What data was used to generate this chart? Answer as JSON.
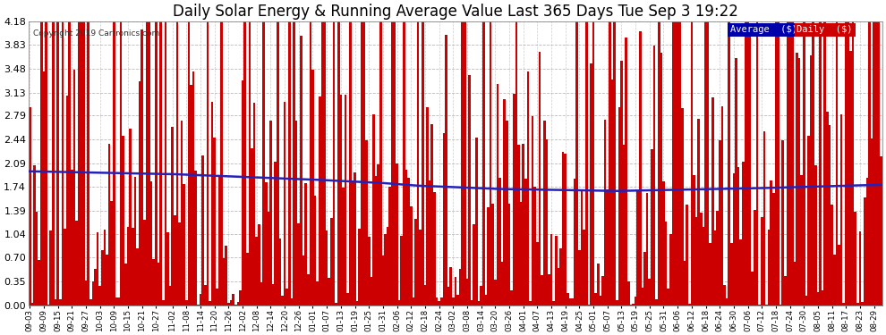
{
  "title": "Daily Solar Energy & Running Average Value Last 365 Days Tue Sep 3 19:22",
  "copyright": "Copyright 2019 Cartronics.com",
  "background_color": "#ffffff",
  "plot_bg_color": "#ffffff",
  "bar_color": "#cc0000",
  "line_color": "#2222bb",
  "ylim_min": 0.0,
  "ylim_max": 4.18,
  "ytick_values": [
    0.0,
    0.35,
    0.7,
    1.04,
    1.39,
    1.74,
    2.09,
    2.44,
    2.79,
    3.13,
    3.48,
    3.83,
    4.18
  ],
  "legend_avg_bg": "#0000aa",
  "legend_daily_bg": "#cc0000",
  "legend_text_color": "#ffffff",
  "title_fontsize": 12,
  "n_days": 365,
  "x_tick_labels": [
    "09-03",
    "09-09",
    "09-15",
    "09-21",
    "09-27",
    "10-03",
    "10-09",
    "10-15",
    "10-21",
    "10-27",
    "11-02",
    "11-08",
    "11-14",
    "11-20",
    "11-26",
    "12-02",
    "12-08",
    "12-14",
    "12-20",
    "12-26",
    "01-01",
    "01-07",
    "01-13",
    "01-19",
    "01-25",
    "01-31",
    "02-06",
    "02-12",
    "02-18",
    "02-24",
    "03-02",
    "03-08",
    "03-14",
    "03-20",
    "03-26",
    "04-01",
    "04-07",
    "04-13",
    "04-19",
    "04-25",
    "05-01",
    "05-07",
    "05-13",
    "05-19",
    "05-25",
    "05-31",
    "06-06",
    "06-12",
    "06-18",
    "06-24",
    "06-30",
    "07-06",
    "07-12",
    "07-18",
    "07-24",
    "07-30",
    "08-05",
    "08-11",
    "08-17",
    "08-23",
    "08-29"
  ],
  "x_tick_positions": [
    0,
    6,
    12,
    18,
    24,
    30,
    36,
    42,
    48,
    54,
    61,
    67,
    73,
    79,
    85,
    91,
    97,
    103,
    109,
    115,
    121,
    127,
    133,
    139,
    145,
    151,
    157,
    163,
    169,
    175,
    181,
    187,
    193,
    199,
    205,
    211,
    217,
    223,
    229,
    235,
    241,
    247,
    253,
    259,
    265,
    271,
    277,
    283,
    289,
    295,
    301,
    307,
    313,
    319,
    325,
    331,
    337,
    343,
    349,
    355,
    361
  ],
  "avg_control_points": [
    [
      0,
      1.97
    ],
    [
      30,
      1.95
    ],
    [
      60,
      1.93
    ],
    [
      90,
      1.89
    ],
    [
      120,
      1.85
    ],
    [
      150,
      1.8
    ],
    [
      165,
      1.76
    ],
    [
      180,
      1.74
    ],
    [
      200,
      1.71
    ],
    [
      220,
      1.7
    ],
    [
      250,
      1.68
    ],
    [
      280,
      1.7
    ],
    [
      310,
      1.72
    ],
    [
      330,
      1.74
    ],
    [
      350,
      1.76
    ],
    [
      364,
      1.77
    ]
  ]
}
